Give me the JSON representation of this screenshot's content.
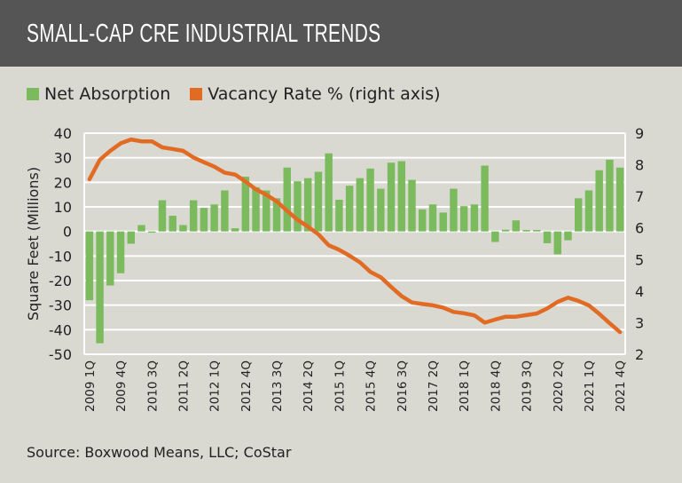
{
  "header": {
    "title": "SMALL-CAP CRE INDUSTRIAL TRENDS"
  },
  "source": "Source: Boxwood Means, LLC; CoStar",
  "colors": {
    "header_bg": "#555555",
    "background": "#d9d8d1",
    "bars": "#7cbb5d",
    "line": "#e26b24",
    "grid": "#ffffff"
  },
  "chart_data": {
    "type": "bar+line",
    "title": "SMALL-CAP CRE INDUSTRIAL TRENDS",
    "ylabel": "Square Feet (Millions)",
    "ylabel_right": "",
    "ylim": [
      -50,
      40
    ],
    "yticks": [
      40,
      30,
      20,
      10,
      0,
      -10,
      -20,
      -30,
      -40,
      -50
    ],
    "ylim_right": [
      2,
      9
    ],
    "yticks_right": [
      9,
      8,
      7,
      6,
      5,
      4,
      3,
      2
    ],
    "grid": true,
    "legend_position": "top-left",
    "categories": [
      "2009 1Q",
      "2009 2Q",
      "2009 3Q",
      "2009 4Q",
      "2010 1Q",
      "2010 2Q",
      "2010 3Q",
      "2010 4Q",
      "2011 1Q",
      "2011 2Q",
      "2011 3Q",
      "2011 4Q",
      "2012 1Q",
      "2012 2Q",
      "2012 3Q",
      "2012 4Q",
      "2013 1Q",
      "2013 2Q",
      "2013 3Q",
      "2013 4Q",
      "2014 1Q",
      "2014 2Q",
      "2014 3Q",
      "2014 4Q",
      "2015 1Q",
      "2015 2Q",
      "2015 3Q",
      "2015 4Q",
      "2016 1Q",
      "2016 2Q",
      "2016 3Q",
      "2016 4Q",
      "2017 1Q",
      "2017 2Q",
      "2017 3Q",
      "2017 4Q",
      "2018 1Q",
      "2018 2Q",
      "2018 3Q",
      "2018 4Q",
      "2019 1Q",
      "2019 2Q",
      "2019 3Q",
      "2019 4Q",
      "2020 1Q",
      "2020 2Q",
      "2020 3Q",
      "2020 4Q",
      "2021 1Q",
      "2021 2Q",
      "2021 3Q",
      "2021 4Q"
    ],
    "xtick_labels": [
      "2009 1Q",
      "2009 4Q",
      "2010 3Q",
      "2011 2Q",
      "2012 1Q",
      "2012 4Q",
      "2013 3Q",
      "2014 2Q",
      "2015 1Q",
      "2015 4Q",
      "2016 3Q",
      "2017 2Q",
      "2018 1Q",
      "2018 4Q",
      "2019 3Q",
      "2020 2Q",
      "2021 1Q",
      "2021 4Q"
    ],
    "series": [
      {
        "name": "Net Absorption",
        "type": "bar",
        "axis": "left",
        "values": [
          -28,
          -45.5,
          -22,
          -17,
          -5,
          2.6,
          -0.5,
          12.7,
          6.4,
          2.6,
          12.7,
          9.6,
          11,
          16.7,
          1.3,
          22.3,
          18,
          16.7,
          13.5,
          26,
          20.4,
          21.7,
          24.3,
          31.8,
          12.9,
          18.6,
          21.7,
          25.6,
          17.4,
          28,
          28.6,
          21,
          9,
          11,
          7.7,
          17.4,
          10.3,
          11,
          26.8,
          -4.3,
          0.7,
          4.5,
          0.6,
          0.6,
          -4.8,
          -9.3,
          -3.6,
          13.5,
          16.7,
          24.9,
          29.2,
          26
        ]
      },
      {
        "name": "Vacancy Rate % (right axis)",
        "type": "line",
        "axis": "right",
        "values": [
          7.54,
          8.16,
          8.44,
          8.68,
          8.8,
          8.74,
          8.74,
          8.55,
          8.5,
          8.44,
          8.23,
          8.08,
          7.94,
          7.75,
          7.69,
          7.47,
          7.22,
          7.05,
          6.84,
          6.54,
          6.26,
          6.04,
          5.8,
          5.45,
          5.31,
          5.12,
          4.91,
          4.61,
          4.44,
          4.13,
          3.84,
          3.64,
          3.59,
          3.55,
          3.48,
          3.34,
          3.3,
          3.23,
          3.0,
          3.1,
          3.19,
          3.19,
          3.24,
          3.29,
          3.45,
          3.66,
          3.79,
          3.69,
          3.55,
          3.28,
          2.98,
          2.7
        ]
      }
    ]
  }
}
